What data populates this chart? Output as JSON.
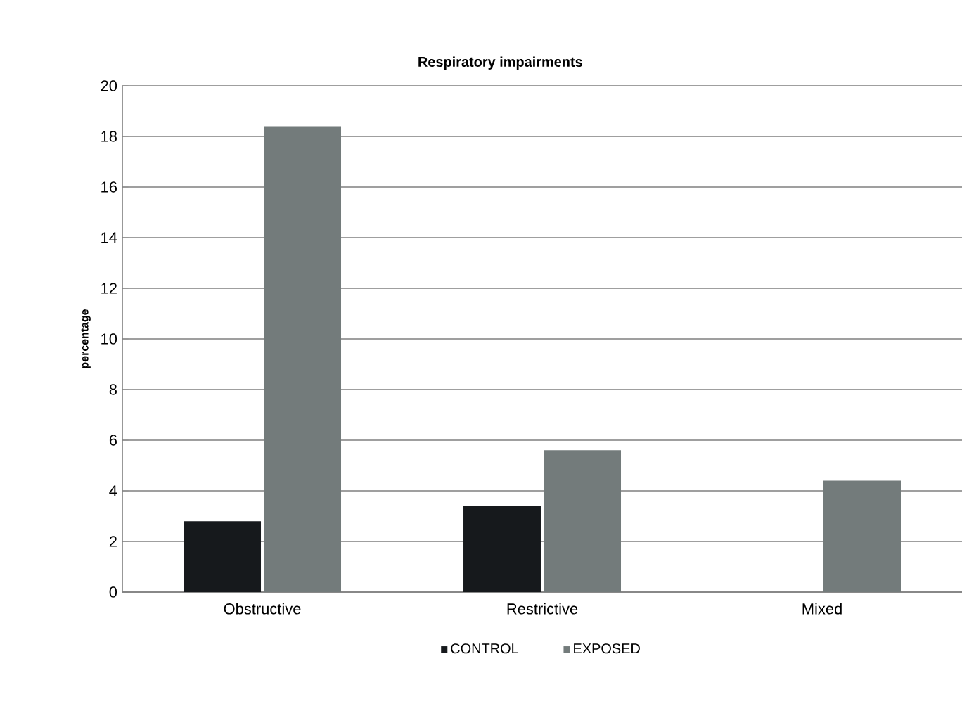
{
  "chart_data": {
    "type": "bar",
    "title": "Respiratory impairments",
    "ylabel": "percentage",
    "categories": [
      "Obstructive",
      "Restrictive",
      "Mixed"
    ],
    "series": [
      {
        "name": "CONTROL",
        "color": "#16191c",
        "values": [
          2.8,
          3.4,
          null
        ]
      },
      {
        "name": "EXPOSED",
        "color": "#737b7b",
        "values": [
          18.4,
          5.6,
          4.4
        ]
      }
    ],
    "ylim": [
      0,
      20
    ],
    "yticks": [
      0,
      2,
      4,
      6,
      8,
      10,
      12,
      14,
      16,
      18,
      20
    ],
    "grid": "y",
    "legend": "bottom"
  }
}
